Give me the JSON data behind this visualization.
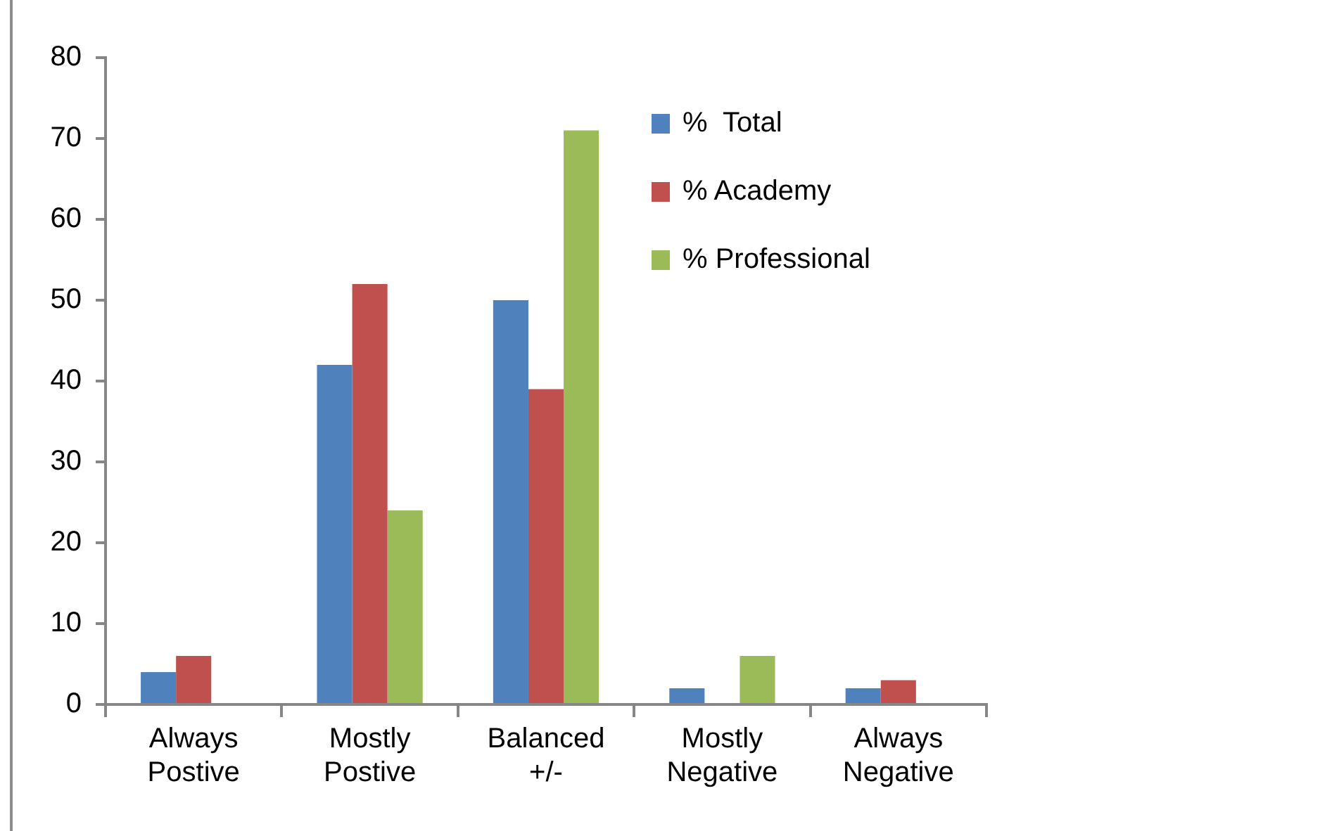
{
  "chart_data": {
    "type": "bar",
    "categories": [
      "Always Postive",
      "Mostly Postive",
      "Balanced +/-",
      "Mostly Negative",
      "Always Negative"
    ],
    "series": [
      {
        "name": "%  Total",
        "color": "#4f81bd",
        "values": [
          4,
          42,
          50,
          2,
          2
        ]
      },
      {
        "name": "% Academy",
        "color": "#c0504d",
        "values": [
          6,
          52,
          39,
          0,
          3
        ]
      },
      {
        "name": "% Professional",
        "color": "#9bbb59",
        "values": [
          0,
          24,
          71,
          6,
          0
        ]
      }
    ],
    "ylim": [
      0,
      80
    ],
    "yticks": [
      0,
      10,
      20,
      30,
      40,
      50,
      60,
      70,
      80
    ],
    "legend": "top right"
  }
}
